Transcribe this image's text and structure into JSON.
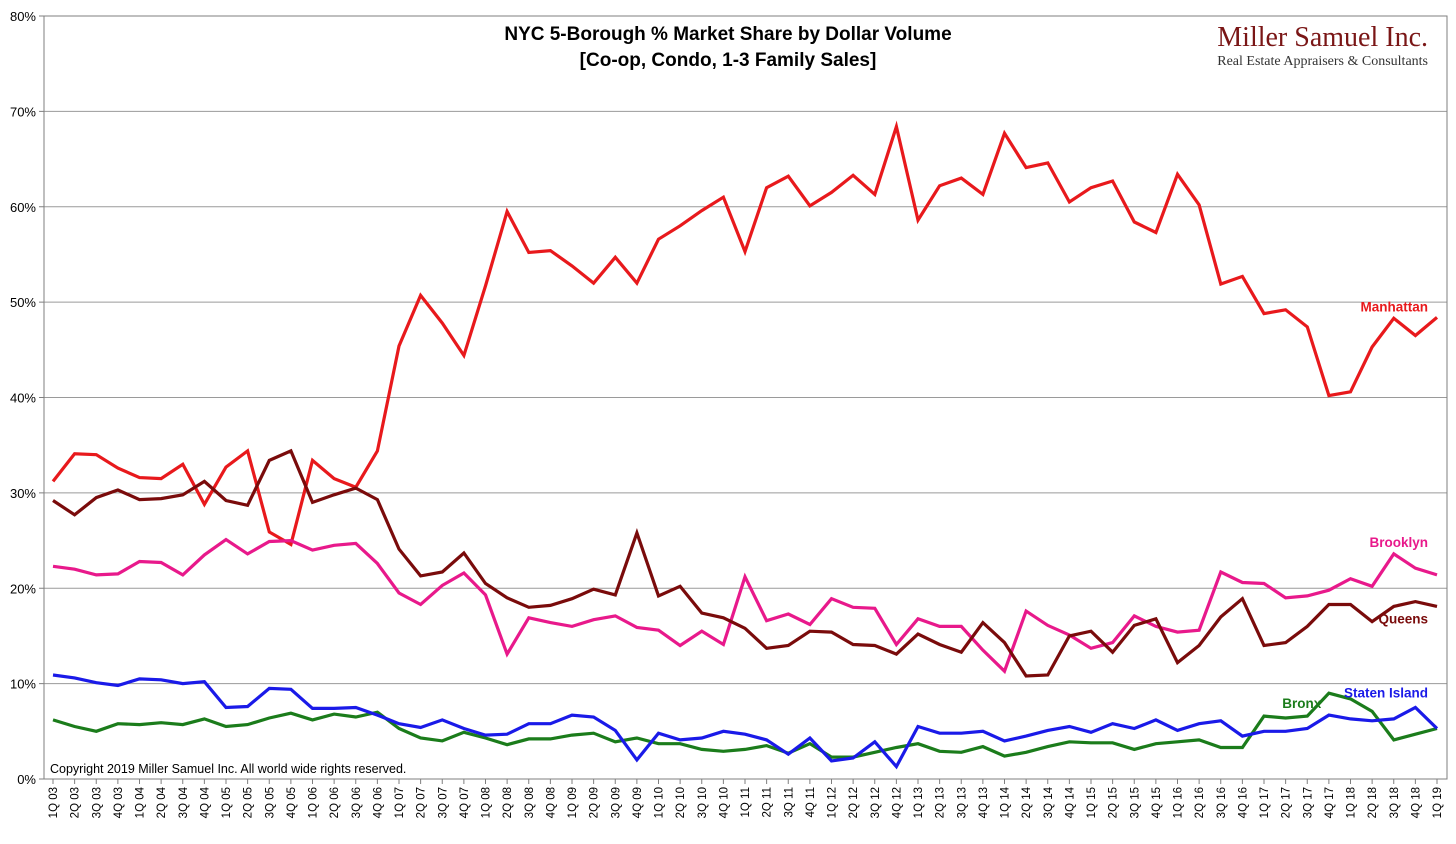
{
  "chart_data": {
    "type": "line",
    "title": "NYC 5-Borough % Market Share by Dollar Volume",
    "subtitle": "[Co-op, Condo, 1-3 Family Sales]",
    "logo": {
      "name": "Miller Samuel Inc.",
      "tagline": "Real Estate Appraisers & Consultants"
    },
    "copyright": "Copyright 2019 Miller Samuel Inc.  All world wide rights reserved.",
    "ylim": [
      0,
      80
    ],
    "yticks": [
      "0%",
      "10%",
      "20%",
      "30%",
      "40%",
      "50%",
      "60%",
      "70%",
      "80%"
    ],
    "grid": true,
    "x": [
      "1Q 03",
      "2Q 03",
      "3Q 03",
      "4Q 03",
      "1Q 04",
      "2Q 04",
      "3Q 04",
      "4Q 04",
      "1Q 05",
      "2Q 05",
      "3Q 05",
      "4Q 05",
      "1Q 06",
      "2Q 06",
      "3Q 06",
      "4Q 06",
      "1Q 07",
      "2Q 07",
      "3Q 07",
      "4Q 07",
      "1Q 08",
      "2Q 08",
      "3Q 08",
      "4Q 08",
      "1Q 09",
      "2Q 09",
      "3Q 09",
      "4Q 09",
      "1Q 10",
      "2Q 10",
      "3Q 10",
      "4Q 10",
      "1Q 11",
      "2Q 11",
      "3Q 11",
      "4Q 11",
      "1Q 12",
      "2Q 12",
      "3Q 12",
      "4Q 12",
      "1Q 13",
      "2Q 13",
      "3Q 13",
      "4Q 13",
      "1Q 14",
      "2Q 14",
      "3Q 14",
      "4Q 14",
      "1Q 15",
      "2Q 15",
      "3Q 15",
      "4Q 15",
      "1Q 16",
      "2Q 16",
      "3Q 16",
      "4Q 16",
      "1Q 17",
      "2Q 17",
      "3Q 17",
      "4Q 17",
      "1Q 18",
      "2Q 18",
      "3Q 18",
      "4Q 18",
      "1Q 19"
    ],
    "series": [
      {
        "name": "Manhattan",
        "color": "#e8191c",
        "values": [
          31.2,
          34.1,
          34.0,
          32.6,
          31.6,
          31.5,
          33.0,
          28.8,
          32.7,
          34.4,
          25.9,
          24.6,
          33.4,
          31.5,
          30.6,
          34.4,
          45.4,
          50.7,
          47.8,
          44.4,
          51.7,
          59.5,
          55.2,
          55.4,
          53.8,
          52.0,
          54.7,
          52.0,
          56.6,
          58.0,
          59.6,
          61.0,
          55.3,
          62.0,
          63.2,
          60.1,
          61.5,
          63.3,
          61.3,
          68.4,
          58.6,
          62.2,
          63.0,
          61.3,
          67.7,
          64.1,
          64.6,
          60.5,
          62.0,
          62.7,
          58.4,
          57.3,
          63.4,
          60.2,
          51.9,
          52.7,
          48.8,
          49.2,
          47.4,
          40.2,
          40.6,
          45.3,
          48.3,
          46.5,
          48.4
        ]
      },
      {
        "name": "Brooklyn",
        "color": "#e8198b",
        "values": [
          22.3,
          22.0,
          21.4,
          21.5,
          22.8,
          22.7,
          21.4,
          23.5,
          25.1,
          23.6,
          24.9,
          25.0,
          24.0,
          24.5,
          24.7,
          22.6,
          19.5,
          18.3,
          20.3,
          21.6,
          19.3,
          13.1,
          16.9,
          16.4,
          16.0,
          16.7,
          17.1,
          15.9,
          15.6,
          14.0,
          15.5,
          14.1,
          21.2,
          16.6,
          17.3,
          16.2,
          18.9,
          18.0,
          17.9,
          14.1,
          16.8,
          16.0,
          16.0,
          13.5,
          11.3,
          17.6,
          16.1,
          15.1,
          13.7,
          14.3,
          17.1,
          16.0,
          15.4,
          15.6,
          21.7,
          20.6,
          20.5,
          19.0,
          19.2,
          19.8,
          21.0,
          20.2,
          23.6,
          22.1,
          21.4
        ]
      },
      {
        "name": "Queens",
        "color": "#7a0b0b",
        "values": [
          29.2,
          27.7,
          29.5,
          30.3,
          29.3,
          29.4,
          29.8,
          31.2,
          29.2,
          28.7,
          33.4,
          34.4,
          29.0,
          29.8,
          30.5,
          29.3,
          24.1,
          21.3,
          21.7,
          23.7,
          20.5,
          19.0,
          18.0,
          18.2,
          18.9,
          19.9,
          19.3,
          25.8,
          19.2,
          20.2,
          17.4,
          16.9,
          15.8,
          13.7,
          14.0,
          15.5,
          15.4,
          14.1,
          14.0,
          13.1,
          15.2,
          14.1,
          13.3,
          16.4,
          14.3,
          10.8,
          10.9,
          15.0,
          15.5,
          13.3,
          16.1,
          16.8,
          12.2,
          14.0,
          17.0,
          18.9,
          14.0,
          14.3,
          16.0,
          18.3,
          18.3,
          16.5,
          18.1,
          18.6,
          18.1
        ]
      },
      {
        "name": "Bronx",
        "color": "#1b7c1b",
        "values": [
          6.2,
          5.5,
          5.0,
          5.8,
          5.7,
          5.9,
          5.7,
          6.3,
          5.5,
          5.7,
          6.4,
          6.9,
          6.2,
          6.8,
          6.5,
          7.0,
          5.3,
          4.3,
          4.0,
          4.9,
          4.3,
          3.6,
          4.2,
          4.2,
          4.6,
          4.8,
          3.9,
          4.3,
          3.7,
          3.7,
          3.1,
          2.9,
          3.1,
          3.5,
          2.7,
          3.7,
          2.3,
          2.3,
          2.8,
          3.3,
          3.7,
          2.9,
          2.8,
          3.4,
          2.4,
          2.8,
          3.4,
          3.9,
          3.8,
          3.8,
          3.1,
          3.7,
          3.9,
          4.1,
          3.3,
          3.3,
          6.6,
          6.4,
          6.6,
          9.0,
          8.4,
          7.1,
          4.1,
          4.7,
          5.3
        ]
      },
      {
        "name": "Staten Island",
        "color": "#1a1ae8",
        "values": [
          10.9,
          10.6,
          10.1,
          9.8,
          10.5,
          10.4,
          10.0,
          10.2,
          7.5,
          7.6,
          9.5,
          9.4,
          7.4,
          7.4,
          7.5,
          6.7,
          5.8,
          5.4,
          6.2,
          5.3,
          4.6,
          4.7,
          5.8,
          5.8,
          6.7,
          6.5,
          5.1,
          2.0,
          4.8,
          4.1,
          4.3,
          5.0,
          4.7,
          4.1,
          2.6,
          4.3,
          1.9,
          2.2,
          3.9,
          1.3,
          5.5,
          4.8,
          4.8,
          5.0,
          4.0,
          4.5,
          5.1,
          5.5,
          4.9,
          5.8,
          5.3,
          6.2,
          5.1,
          5.8,
          6.1,
          4.5,
          5.0,
          5.0,
          5.3,
          6.7,
          6.3,
          6.1,
          6.3,
          7.5,
          5.3
        ]
      }
    ]
  }
}
